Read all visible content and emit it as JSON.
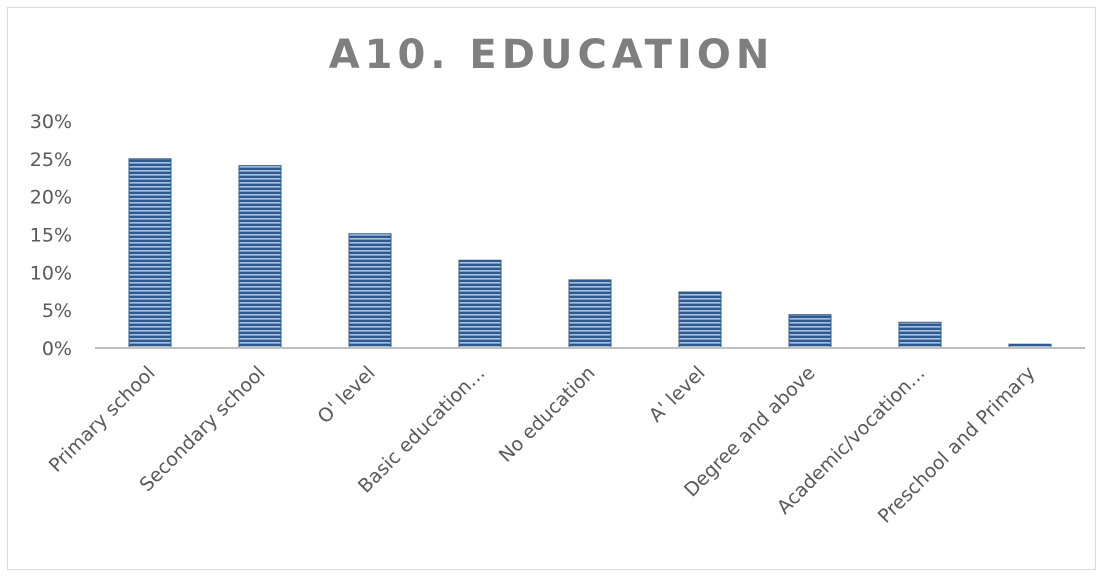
{
  "chart_data": {
    "type": "bar",
    "title": "A10. EDUCATION",
    "xlabel": "",
    "ylabel": "",
    "categories": [
      "Primary school",
      "Secondary school",
      "O' level",
      "Basic education…",
      "No education",
      "A' level",
      "Degree and above",
      "Academic/vocation…",
      "Preschool and Primary"
    ],
    "values": [
      25.0,
      24.1,
      15.1,
      11.6,
      9.0,
      7.4,
      4.4,
      3.4,
      0.5
    ],
    "ylim": [
      0,
      30
    ],
    "yticks": [
      "0%",
      "5%",
      "10%",
      "15%",
      "20%",
      "25%",
      "30%"
    ],
    "grid": false,
    "legend": "none",
    "colors": {
      "bar": "#2e5a8f",
      "bar_stripe": "#c9dbef",
      "axis": "#bfbfbf",
      "title": "#7f7f7f",
      "text": "#595959"
    }
  }
}
